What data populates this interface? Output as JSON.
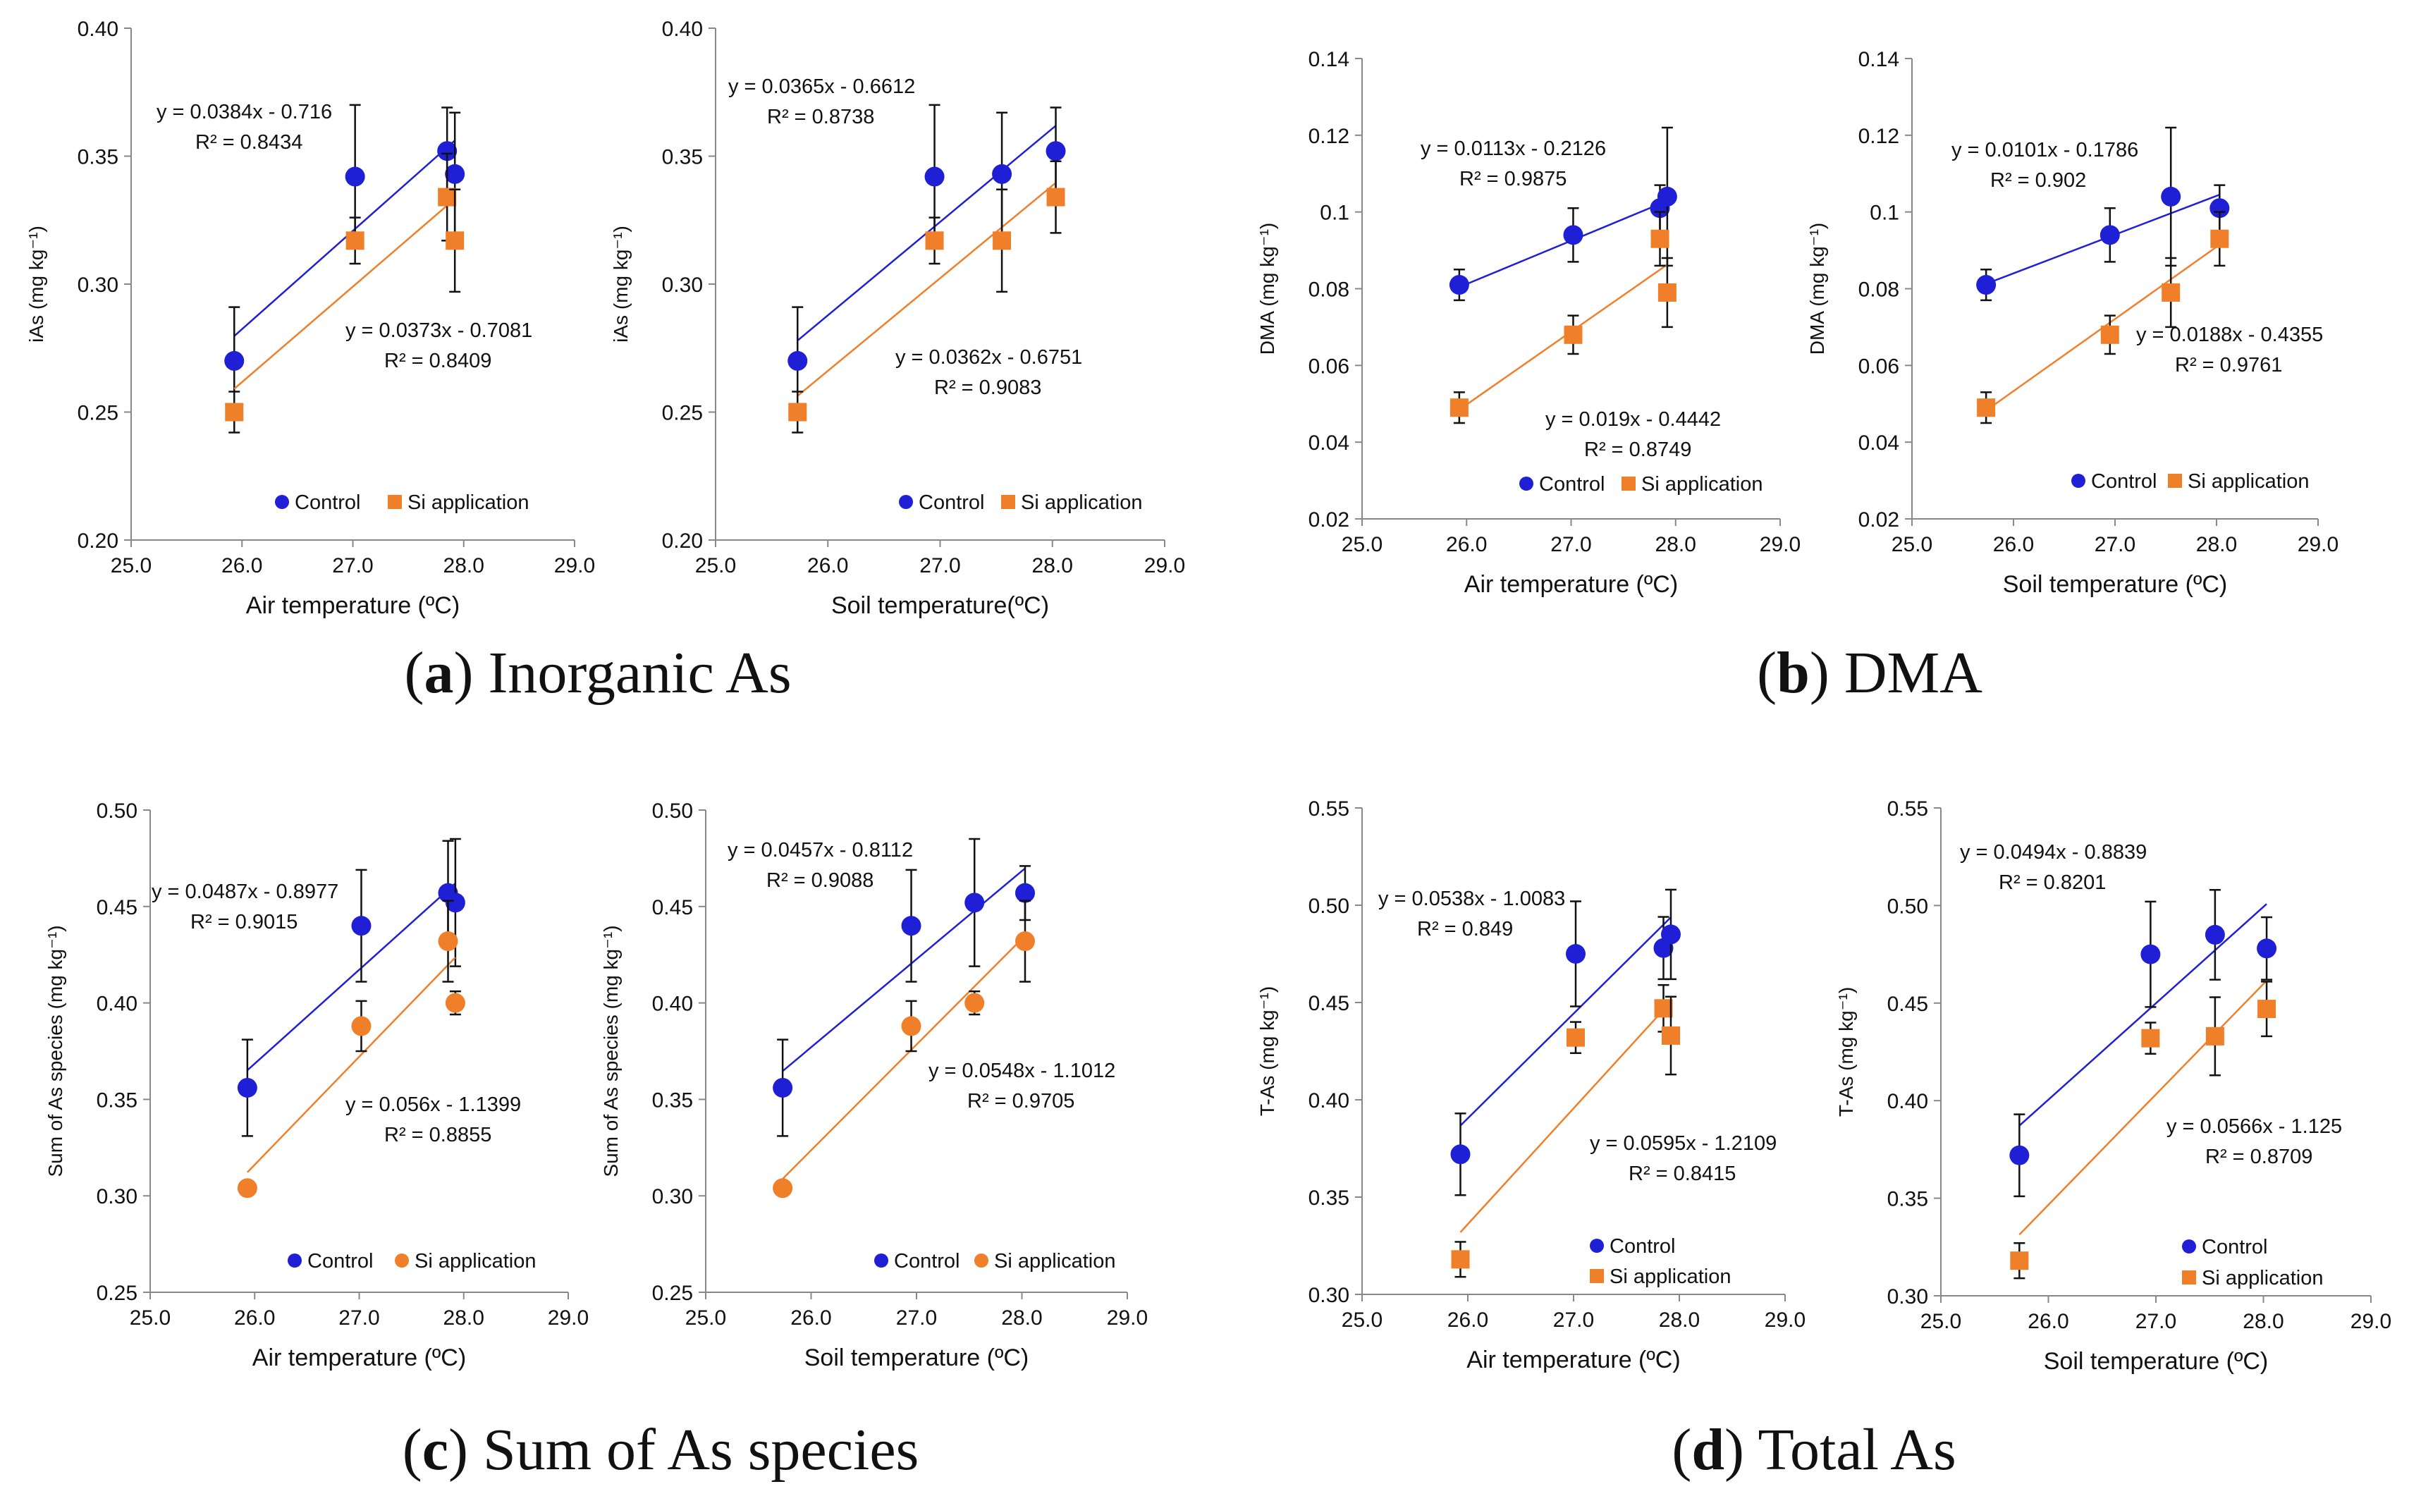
{
  "figure": {
    "panels": [
      {
        "letter": "a",
        "title": "Inorganic As"
      },
      {
        "letter": "b",
        "title": "DMA"
      },
      {
        "letter": "c",
        "title": "Sum of As species"
      },
      {
        "letter": "d",
        "title": "Total As"
      }
    ]
  },
  "colors": {
    "control": "#1f1fd6",
    "si": "#f07f2a",
    "axis": "#888888",
    "text": "#111111"
  },
  "chart_data": [
    {
      "id": "a-air",
      "type": "scatter",
      "xlabel": "Air temperature (ºC)",
      "ylabel": "iAs (mg kg⁻¹)",
      "xlim": [
        25,
        29
      ],
      "ylim": [
        0.2,
        0.4
      ],
      "xticks": [
        "25.0",
        "26.0",
        "27.0",
        "28.0",
        "29.0"
      ],
      "yticks": [
        "0.20",
        "0.25",
        "0.30",
        "0.35",
        "0.40"
      ],
      "legend": {
        "control": "Control",
        "si": "Si application"
      },
      "series": [
        {
          "name": "Control",
          "marker": "circle",
          "points": [
            {
              "x": 25.93,
              "y": 0.27,
              "yerr": 0.021
            },
            {
              "x": 27.02,
              "y": 0.342,
              "yerr": 0.028
            },
            {
              "x": 27.85,
              "y": 0.352,
              "yerr": 0.017
            },
            {
              "x": 27.92,
              "y": 0.343,
              "yerr": 0.024
            }
          ],
          "fit": {
            "x": [
              25.93,
              27.92
            ],
            "equation": "y = 0.0384x - 0.716",
            "r2": "R² = 0.8434"
          }
        },
        {
          "name": "Si application",
          "marker": "square",
          "points": [
            {
              "x": 25.93,
              "y": 0.25,
              "yerr": 0.008
            },
            {
              "x": 27.02,
              "y": 0.317,
              "yerr": 0.009
            },
            {
              "x": 27.85,
              "y": 0.334,
              "yerr": 0.017
            },
            {
              "x": 27.92,
              "y": 0.317,
              "yerr": 0.02
            }
          ],
          "fit": {
            "x": [
              25.93,
              27.92
            ],
            "equation": "y = 0.0373x - 0.7081",
            "r2": "R² = 0.8409"
          }
        }
      ]
    },
    {
      "id": "a-soil",
      "type": "scatter",
      "xlabel": "Soil temperature(ºC)",
      "ylabel": "iAs (mg kg⁻¹)",
      "xlim": [
        25,
        29
      ],
      "ylim": [
        0.2,
        0.4
      ],
      "xticks": [
        "25.0",
        "26.0",
        "27.0",
        "28.0",
        "29.0"
      ],
      "yticks": [
        "0.20",
        "0.25",
        "0.30",
        "0.35",
        "0.40"
      ],
      "legend": {
        "control": "Control",
        "si": "Si application"
      },
      "series": [
        {
          "name": "Control",
          "marker": "circle",
          "points": [
            {
              "x": 25.73,
              "y": 0.27,
              "yerr": 0.021
            },
            {
              "x": 26.95,
              "y": 0.342,
              "yerr": 0.028
            },
            {
              "x": 27.55,
              "y": 0.343,
              "yerr": 0.024
            },
            {
              "x": 28.03,
              "y": 0.352,
              "yerr": 0.017
            }
          ],
          "fit": {
            "x": [
              25.73,
              28.03
            ],
            "equation": "y = 0.0365x - 0.6612",
            "r2": "R² = 0.8738"
          }
        },
        {
          "name": "Si application",
          "marker": "square",
          "points": [
            {
              "x": 25.73,
              "y": 0.25,
              "yerr": 0.008
            },
            {
              "x": 26.95,
              "y": 0.317,
              "yerr": 0.009
            },
            {
              "x": 27.55,
              "y": 0.317,
              "yerr": 0.02
            },
            {
              "x": 28.03,
              "y": 0.334,
              "yerr": 0.014
            }
          ],
          "fit": {
            "x": [
              25.73,
              28.03
            ],
            "equation": "y = 0.0362x - 0.6751",
            "r2": "R² = 0.9083"
          }
        }
      ]
    },
    {
      "id": "b-air",
      "type": "scatter",
      "xlabel": "Air temperature (ºC)",
      "ylabel": "DMA (mg kg⁻¹)",
      "xlim": [
        25,
        29
      ],
      "ylim": [
        0.02,
        0.14
      ],
      "xticks": [
        "25.0",
        "26.0",
        "27.0",
        "28.0",
        "29.0"
      ],
      "yticks": [
        "0.02",
        "0.04",
        "0.06",
        "0.08",
        "0.1",
        "0.12",
        "0.14"
      ],
      "legend": {
        "control": "Control",
        "si": "Si application"
      },
      "series": [
        {
          "name": "Control",
          "marker": "circle",
          "points": [
            {
              "x": 25.93,
              "y": 0.081,
              "yerr": 0.004
            },
            {
              "x": 27.02,
              "y": 0.094,
              "yerr": 0.007
            },
            {
              "x": 27.85,
              "y": 0.101,
              "yerr": 0.006
            },
            {
              "x": 27.92,
              "y": 0.104,
              "yerr": 0.018
            }
          ],
          "fit": {
            "x": [
              25.93,
              27.92
            ],
            "equation": "y = 0.0113x - 0.2126",
            "r2": "R² = 0.9875"
          }
        },
        {
          "name": "Si application",
          "marker": "square",
          "points": [
            {
              "x": 25.93,
              "y": 0.049,
              "yerr": 0.004
            },
            {
              "x": 27.02,
              "y": 0.068,
              "yerr": 0.005
            },
            {
              "x": 27.85,
              "y": 0.093,
              "yerr": 0.007
            },
            {
              "x": 27.92,
              "y": 0.079,
              "yerr": 0.009
            }
          ],
          "fit": {
            "x": [
              25.93,
              27.92
            ],
            "equation": "y = 0.019x - 0.4442",
            "r2": "R² = 0.8749"
          }
        }
      ]
    },
    {
      "id": "b-soil",
      "type": "scatter",
      "xlabel": "Soil temperature (ºC)",
      "ylabel": "DMA (mg kg⁻¹)",
      "xlim": [
        25,
        29
      ],
      "ylim": [
        0.02,
        0.14
      ],
      "xticks": [
        "25.0",
        "26.0",
        "27.0",
        "28.0",
        "29.0"
      ],
      "yticks": [
        "0.02",
        "0.04",
        "0.06",
        "0.08",
        "0.1",
        "0.12",
        "0.14"
      ],
      "legend": {
        "control": "Control",
        "si": "Si application"
      },
      "series": [
        {
          "name": "Control",
          "marker": "circle",
          "points": [
            {
              "x": 25.73,
              "y": 0.081,
              "yerr": 0.004
            },
            {
              "x": 26.95,
              "y": 0.094,
              "yerr": 0.007
            },
            {
              "x": 27.55,
              "y": 0.104,
              "yerr": 0.018
            },
            {
              "x": 28.03,
              "y": 0.101,
              "yerr": 0.006
            }
          ],
          "fit": {
            "x": [
              25.73,
              28.03
            ],
            "equation": "y = 0.0101x - 0.1786",
            "r2": "R² = 0.902"
          }
        },
        {
          "name": "Si application",
          "marker": "square",
          "points": [
            {
              "x": 25.73,
              "y": 0.049,
              "yerr": 0.004
            },
            {
              "x": 26.95,
              "y": 0.068,
              "yerr": 0.005
            },
            {
              "x": 27.55,
              "y": 0.079,
              "yerr": 0.009
            },
            {
              "x": 28.03,
              "y": 0.093,
              "yerr": 0.007
            }
          ],
          "fit": {
            "x": [
              25.73,
              28.03
            ],
            "equation": "y = 0.0188x - 0.4355",
            "r2": "R² = 0.9761"
          }
        }
      ]
    },
    {
      "id": "c-air",
      "type": "scatter",
      "xlabel": "Air temperature (ºC)",
      "ylabel": "Sum of As species (mg kg⁻¹)",
      "xlim": [
        25,
        29
      ],
      "ylim": [
        0.25,
        0.5
      ],
      "xticks": [
        "25.0",
        "26.0",
        "27.0",
        "28.0",
        "29.0"
      ],
      "yticks": [
        "0.25",
        "0.30",
        "0.35",
        "0.40",
        "0.45",
        "0.50"
      ],
      "legend": {
        "control": "Control",
        "si": "Si application"
      },
      "series": [
        {
          "name": "Control",
          "marker": "circle",
          "points": [
            {
              "x": 25.93,
              "y": 0.356,
              "yerr": 0.025
            },
            {
              "x": 27.02,
              "y": 0.44,
              "yerr": 0.029
            },
            {
              "x": 27.85,
              "y": 0.457,
              "yerr": 0.027
            },
            {
              "x": 27.92,
              "y": 0.452,
              "yerr": 0.033
            }
          ],
          "fit": {
            "x": [
              25.93,
              27.92
            ],
            "equation": "y = 0.0487x - 0.8977",
            "r2": "R² = 0.9015"
          }
        },
        {
          "name": "Si application",
          "marker": "circle",
          "points": [
            {
              "x": 25.93,
              "y": 0.304,
              "yerr": 0.0
            },
            {
              "x": 27.02,
              "y": 0.388,
              "yerr": 0.013
            },
            {
              "x": 27.85,
              "y": 0.432,
              "yerr": 0.021
            },
            {
              "x": 27.92,
              "y": 0.4,
              "yerr": 0.006
            }
          ],
          "fit": {
            "x": [
              25.93,
              27.92
            ],
            "equation": "y = 0.056x - 1.1399",
            "r2": "R² = 0.8855"
          }
        }
      ]
    },
    {
      "id": "c-soil",
      "type": "scatter",
      "xlabel": "Soil temperature (ºC)",
      "ylabel": "Sum of As species (mg kg⁻¹)",
      "xlim": [
        25,
        29
      ],
      "ylim": [
        0.25,
        0.5
      ],
      "xticks": [
        "25.0",
        "26.0",
        "27.0",
        "28.0",
        "29.0"
      ],
      "yticks": [
        "0.25",
        "0.30",
        "0.35",
        "0.40",
        "0.45",
        "0.50"
      ],
      "legend": {
        "control": "Control",
        "si": "Si application"
      },
      "series": [
        {
          "name": "Control",
          "marker": "circle",
          "points": [
            {
              "x": 25.73,
              "y": 0.356,
              "yerr": 0.025
            },
            {
              "x": 26.95,
              "y": 0.44,
              "yerr": 0.029
            },
            {
              "x": 27.55,
              "y": 0.452,
              "yerr": 0.033
            },
            {
              "x": 28.03,
              "y": 0.457,
              "yerr": 0.014
            }
          ],
          "fit": {
            "x": [
              25.73,
              28.03
            ],
            "equation": "y = 0.0457x - 0.8112",
            "r2": "R² = 0.9088"
          }
        },
        {
          "name": "Si application",
          "marker": "circle",
          "points": [
            {
              "x": 25.73,
              "y": 0.304,
              "yerr": 0.0
            },
            {
              "x": 26.95,
              "y": 0.388,
              "yerr": 0.013
            },
            {
              "x": 27.55,
              "y": 0.4,
              "yerr": 0.006
            },
            {
              "x": 28.03,
              "y": 0.432,
              "yerr": 0.021
            }
          ],
          "fit": {
            "x": [
              25.73,
              28.03
            ],
            "equation": "y = 0.0548x - 1.1012",
            "r2": "R² = 0.9705"
          }
        }
      ]
    },
    {
      "id": "d-air",
      "type": "scatter",
      "xlabel": "Air temperature (ºC)",
      "ylabel": "T-As (mg kg⁻¹)",
      "xlim": [
        25,
        29
      ],
      "ylim": [
        0.3,
        0.55
      ],
      "xticks": [
        "25.0",
        "26.0",
        "27.0",
        "28.0",
        "29.0"
      ],
      "yticks": [
        "0.30",
        "0.35",
        "0.40",
        "0.45",
        "0.50",
        "0.55"
      ],
      "legend": {
        "control": "Control",
        "si": "Si application"
      },
      "series": [
        {
          "name": "Control",
          "marker": "circle",
          "points": [
            {
              "x": 25.93,
              "y": 0.372,
              "yerr": 0.021
            },
            {
              "x": 27.02,
              "y": 0.475,
              "yerr": 0.027
            },
            {
              "x": 27.85,
              "y": 0.478,
              "yerr": 0.016
            },
            {
              "x": 27.92,
              "y": 0.485,
              "yerr": 0.023
            }
          ],
          "fit": {
            "x": [
              25.93,
              27.92
            ],
            "equation": "y = 0.0538x - 1.0083",
            "r2": "R² = 0.849"
          }
        },
        {
          "name": "Si application",
          "marker": "square",
          "points": [
            {
              "x": 25.93,
              "y": 0.318,
              "yerr": 0.009
            },
            {
              "x": 27.02,
              "y": 0.432,
              "yerr": 0.008
            },
            {
              "x": 27.85,
              "y": 0.447,
              "yerr": 0.012
            },
            {
              "x": 27.92,
              "y": 0.433,
              "yerr": 0.02
            }
          ],
          "fit": {
            "x": [
              25.93,
              27.92
            ],
            "equation": "y = 0.0595x - 1.2109",
            "r2": "R² = 0.8415"
          }
        }
      ]
    },
    {
      "id": "d-soil",
      "type": "scatter",
      "xlabel": "Soil temperature (ºC)",
      "ylabel": "T-As (mg kg⁻¹)",
      "xlim": [
        25,
        29
      ],
      "ylim": [
        0.3,
        0.55
      ],
      "xticks": [
        "25.0",
        "26.0",
        "27.0",
        "28.0",
        "29.0"
      ],
      "yticks": [
        "0.30",
        "0.35",
        "0.40",
        "0.45",
        "0.50",
        "0.55"
      ],
      "legend": {
        "control": "Control",
        "si": "Si application"
      },
      "series": [
        {
          "name": "Control",
          "marker": "circle",
          "points": [
            {
              "x": 25.73,
              "y": 0.372,
              "yerr": 0.021
            },
            {
              "x": 26.95,
              "y": 0.475,
              "yerr": 0.027
            },
            {
              "x": 27.55,
              "y": 0.485,
              "yerr": 0.023
            },
            {
              "x": 28.03,
              "y": 0.478,
              "yerr": 0.016
            }
          ],
          "fit": {
            "x": [
              25.73,
              28.03
            ],
            "equation": "y = 0.0494x - 0.8839",
            "r2": "R² = 0.8201"
          }
        },
        {
          "name": "Si application",
          "marker": "square",
          "points": [
            {
              "x": 25.73,
              "y": 0.318,
              "yerr": 0.009
            },
            {
              "x": 26.95,
              "y": 0.432,
              "yerr": 0.008
            },
            {
              "x": 27.55,
              "y": 0.433,
              "yerr": 0.02
            },
            {
              "x": 28.03,
              "y": 0.447,
              "yerr": 0.014
            }
          ],
          "fit": {
            "x": [
              25.73,
              28.03
            ],
            "equation": "y = 0.0566x - 1.125",
            "r2": "R² = 0.8709"
          }
        }
      ]
    }
  ]
}
